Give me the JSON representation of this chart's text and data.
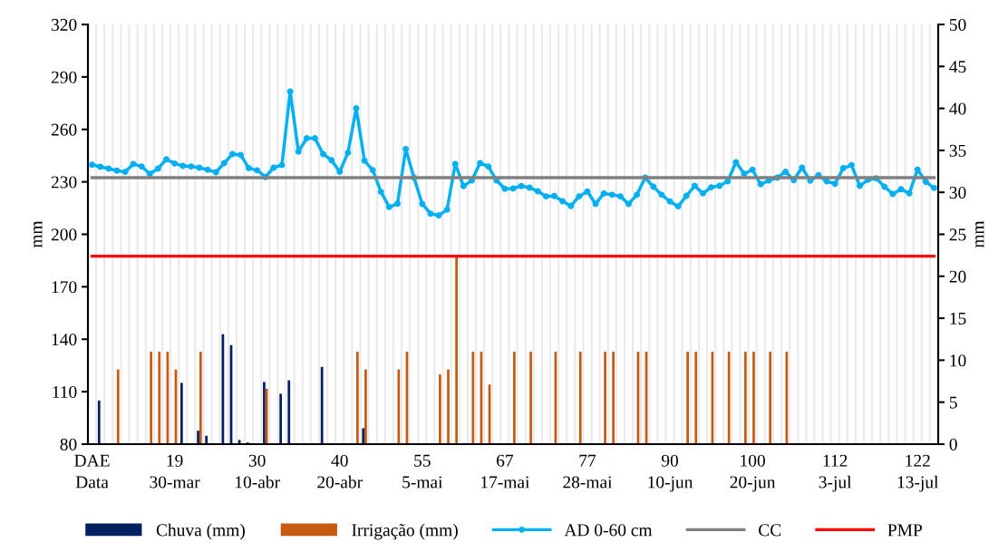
{
  "chart_data": {
    "type": "bar",
    "categories": [
      "DAE\nData",
      null,
      null,
      null,
      null,
      null,
      null,
      null,
      null,
      null,
      "19\n30-mar",
      null,
      null,
      null,
      null,
      null,
      null,
      null,
      null,
      null,
      "30\n10-abr",
      null,
      null,
      null,
      null,
      null,
      null,
      null,
      null,
      null,
      "40\n20-abr",
      null,
      null,
      null,
      null,
      null,
      null,
      null,
      null,
      null,
      "55\n5-mai",
      null,
      null,
      null,
      null,
      null,
      null,
      null,
      null,
      null,
      "67\n17-mai",
      null,
      null,
      null,
      null,
      null,
      null,
      null,
      null,
      null,
      "77\n28-mai",
      null,
      null,
      null,
      null,
      null,
      null,
      null,
      null,
      null,
      "90\n10-jun",
      null,
      null,
      null,
      null,
      null,
      null,
      null,
      null,
      null,
      "100\n20-jun",
      null,
      null,
      null,
      null,
      null,
      null,
      null,
      null,
      null,
      "112\n3-jul",
      null,
      null,
      null,
      null,
      null,
      null,
      null,
      null,
      null,
      "122\n13-jul",
      null,
      null
    ],
    "ylabel": "mm",
    "y2label": "mm",
    "ylim": [
      80,
      320
    ],
    "yticks": [
      80,
      110,
      140,
      170,
      200,
      230,
      260,
      290,
      320
    ],
    "y2lim": [
      0,
      50
    ],
    "y2ticks": [
      0,
      5,
      10,
      15,
      20,
      25,
      30,
      35,
      40,
      45,
      50
    ],
    "grid": "x",
    "legend": "bottom",
    "series": [
      {
        "name": "Chuva (mm)",
        "axis": "y2",
        "color": "#002060",
        "values": [
          null,
          5.2,
          null,
          null,
          null,
          null,
          null,
          null,
          null,
          null,
          null,
          7.3,
          null,
          1.6,
          1.0,
          null,
          13.1,
          11.8,
          0.5,
          0.2,
          null,
          7.4,
          0.1,
          6.0,
          7.6,
          null,
          null,
          null,
          9.2,
          0.1,
          null,
          null,
          null,
          1.9,
          null,
          null,
          null,
          null,
          null,
          null,
          null,
          null,
          null,
          null,
          null,
          null,
          null,
          null,
          null,
          null,
          null,
          null,
          null,
          null,
          null,
          null,
          null,
          null,
          null,
          null,
          null,
          null,
          null,
          null,
          null,
          null,
          null,
          null,
          null,
          null,
          null,
          null,
          null,
          null,
          null,
          null,
          null,
          null,
          null,
          null,
          null,
          null,
          null,
          null,
          null,
          null,
          null,
          null,
          null,
          null,
          null,
          null,
          null,
          null,
          null,
          null,
          null,
          null,
          null,
          null,
          null,
          null,
          null
        ]
      },
      {
        "name": "Irrigação (mm)",
        "axis": "y2",
        "color": "#c55a11",
        "values": [
          null,
          null,
          null,
          8.9,
          null,
          null,
          null,
          11,
          11,
          11,
          8.9,
          null,
          null,
          11,
          null,
          null,
          null,
          null,
          null,
          null,
          null,
          6.6,
          null,
          null,
          null,
          null,
          null,
          null,
          null,
          null,
          null,
          null,
          11,
          8.9,
          null,
          null,
          null,
          8.9,
          11,
          null,
          null,
          null,
          8.3,
          8.9,
          22.3,
          null,
          11,
          11,
          7.1,
          null,
          null,
          11,
          null,
          11,
          null,
          null,
          11,
          null,
          null,
          11,
          null,
          null,
          11,
          11,
          null,
          null,
          11,
          11,
          null,
          null,
          null,
          null,
          11,
          11,
          null,
          11,
          null,
          11,
          null,
          11,
          11,
          null,
          11,
          null,
          11,
          null,
          null,
          null,
          null,
          null,
          null,
          null,
          null,
          null,
          null,
          null,
          null,
          null,
          null,
          null,
          null,
          null,
          null
        ]
      },
      {
        "name": "AD 0-60 cm",
        "type": "line",
        "marker": "circle",
        "color": "#00b0f0",
        "values": [
          239.8,
          238.6,
          237.6,
          236.4,
          235.7,
          240.2,
          238.8,
          234.6,
          237.6,
          242.9,
          240.5,
          239.1,
          238.8,
          238.1,
          236.9,
          235.5,
          240.7,
          245.9,
          245.4,
          237.8,
          236.6,
          232.8,
          238.1,
          239.6,
          281.6,
          247.3,
          254.9,
          254.9,
          245.9,
          242.4,
          235.8,
          246.7,
          272.1,
          242.1,
          236.7,
          224.3,
          215.6,
          217.5,
          248.7,
          232.4,
          217.4,
          211.8,
          210.8,
          214.1,
          240.2,
          227.6,
          230.8,
          240.7,
          238.8,
          230.8,
          226.0,
          226.2,
          227.6,
          226.7,
          224.6,
          221.7,
          221.9,
          218.9,
          216.2,
          221.7,
          224.5,
          217.4,
          223.4,
          222.6,
          221.7,
          217.4,
          222.6,
          232.4,
          227.2,
          222.6,
          218.8,
          216.0,
          222.0,
          227.7,
          223.4,
          226.9,
          227.7,
          230.3,
          241.2,
          234.6,
          236.9,
          228.6,
          230.8,
          232.4,
          235.8,
          231.0,
          238.1,
          230.7,
          233.8,
          230.3,
          228.9,
          237.8,
          239.6,
          227.7,
          231.2,
          232.0,
          227.2,
          223.1,
          225.8,
          223.4,
          237.0,
          230.0,
          226.5
        ]
      },
      {
        "name": "CC",
        "type": "line",
        "color": "#808080",
        "values": [
          232.4,
          232.4,
          232.4,
          232.4,
          232.4,
          232.4,
          232.4,
          232.4,
          232.4,
          232.4,
          232.4,
          232.4,
          232.4,
          232.4,
          232.4,
          232.4,
          232.4,
          232.4,
          232.4,
          232.4,
          232.4,
          232.4,
          232.4,
          232.4,
          232.4,
          232.4,
          232.4,
          232.4,
          232.4,
          232.4,
          232.4,
          232.4,
          232.4,
          232.4,
          232.4,
          232.4,
          232.4,
          232.4,
          232.4,
          232.4,
          232.4,
          232.4,
          232.4,
          232.4,
          232.4,
          232.4,
          232.4,
          232.4,
          232.4,
          232.4,
          232.4,
          232.4,
          232.4,
          232.4,
          232.4,
          232.4,
          232.4,
          232.4,
          232.4,
          232.4,
          232.4,
          232.4,
          232.4,
          232.4,
          232.4,
          232.4,
          232.4,
          232.4,
          232.4,
          232.4,
          232.4,
          232.4,
          232.4,
          232.4,
          232.4,
          232.4,
          232.4,
          232.4,
          232.4,
          232.4,
          232.4,
          232.4,
          232.4,
          232.4,
          232.4,
          232.4,
          232.4,
          232.4,
          232.4,
          232.4,
          232.4,
          232.4,
          232.4,
          232.4,
          232.4,
          232.4,
          232.4,
          232.4,
          232.4,
          232.4,
          232.4,
          232.4,
          232.4
        ]
      },
      {
        "name": "PMP",
        "type": "line",
        "color": "#ff0000",
        "values": [
          187.5,
          187.5,
          187.5,
          187.5,
          187.5,
          187.5,
          187.5,
          187.5,
          187.5,
          187.5,
          187.5,
          187.5,
          187.5,
          187.5,
          187.5,
          187.5,
          187.5,
          187.5,
          187.5,
          187.5,
          187.5,
          187.5,
          187.5,
          187.5,
          187.5,
          187.5,
          187.5,
          187.5,
          187.5,
          187.5,
          187.5,
          187.5,
          187.5,
          187.5,
          187.5,
          187.5,
          187.5,
          187.5,
          187.5,
          187.5,
          187.5,
          187.5,
          187.5,
          187.5,
          187.5,
          187.5,
          187.5,
          187.5,
          187.5,
          187.5,
          187.5,
          187.5,
          187.5,
          187.5,
          187.5,
          187.5,
          187.5,
          187.5,
          187.5,
          187.5,
          187.5,
          187.5,
          187.5,
          187.5,
          187.5,
          187.5,
          187.5,
          187.5,
          187.5,
          187.5,
          187.5,
          187.5,
          187.5,
          187.5,
          187.5,
          187.5,
          187.5,
          187.5,
          187.5,
          187.5,
          187.5,
          187.5,
          187.5,
          187.5,
          187.5,
          187.5,
          187.5,
          187.5,
          187.5,
          187.5,
          187.5,
          187.5,
          187.5,
          187.5,
          187.5,
          187.5,
          187.5,
          187.5,
          187.5,
          187.5,
          187.5,
          187.5,
          187.5
        ]
      }
    ]
  }
}
